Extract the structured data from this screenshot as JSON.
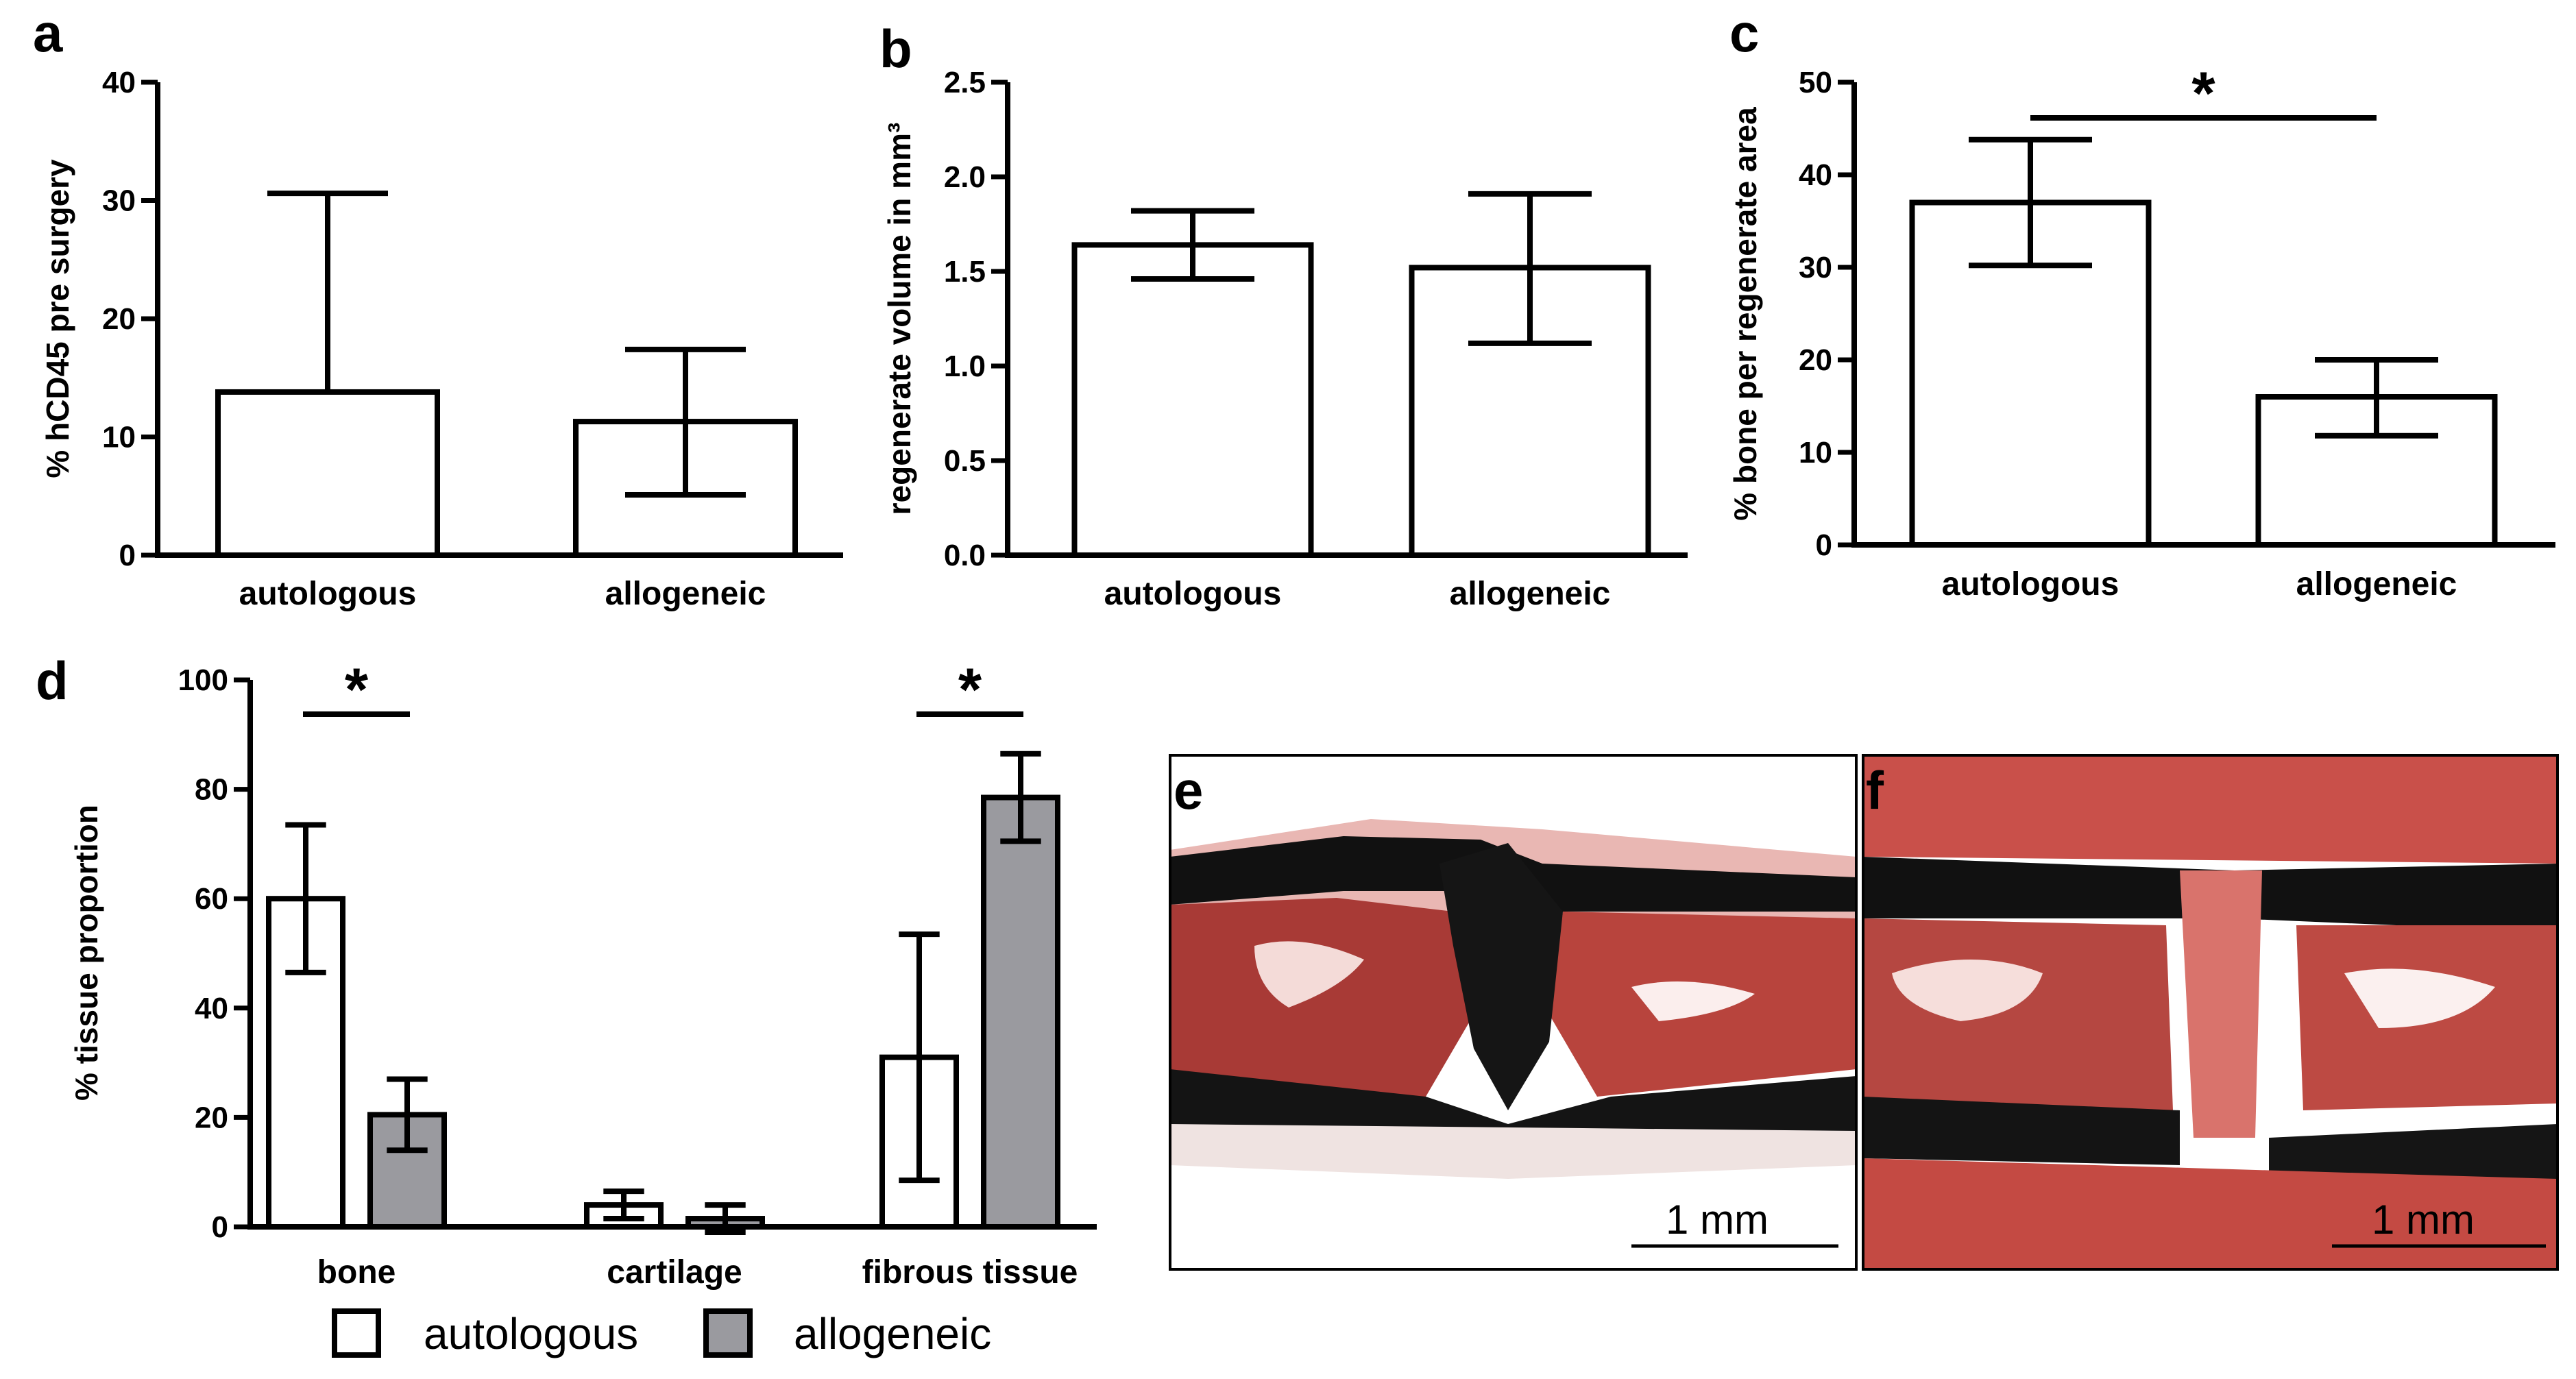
{
  "chart_data": [
    {
      "panel": "a",
      "type": "bar",
      "categories": [
        "autologous",
        "allogeneic"
      ],
      "values": [
        13.8,
        11.3
      ],
      "errors": [
        16.8,
        6.1
      ],
      "error_lower": [
        null,
        6.2
      ],
      "ylabel": "% hCD45 pre surgery",
      "ylim": [
        0,
        40
      ],
      "yticks": [
        "0",
        "10",
        "20",
        "30",
        "40"
      ]
    },
    {
      "panel": "b",
      "type": "bar",
      "categories": [
        "autologous",
        "allogeneic"
      ],
      "values": [
        1.64,
        1.52
      ],
      "errors": [
        0.18,
        0.39
      ],
      "error_lower": [
        0.18,
        0.4
      ],
      "ylabel": "regenerate volume in mm³",
      "ylim": [
        0,
        2.5
      ],
      "yticks": [
        "0.0",
        "0.5",
        "1.0",
        "1.5",
        "2.0",
        "2.5"
      ]
    },
    {
      "panel": "c",
      "type": "bar",
      "categories": [
        "autologous",
        "allogeneic"
      ],
      "values": [
        37.0,
        16.0
      ],
      "errors": [
        6.8,
        4.0
      ],
      "error_lower": [
        6.8,
        4.2
      ],
      "ylabel": "% bone per regenerate area",
      "ylim": [
        0,
        50
      ],
      "yticks": [
        "0",
        "10",
        "20",
        "30",
        "40",
        "50"
      ],
      "significance": [
        {
          "label": "*",
          "between": [
            0,
            1
          ]
        }
      ]
    },
    {
      "panel": "d",
      "type": "bar",
      "categories": [
        "bone",
        "cartilage",
        "fibrous tissue"
      ],
      "series": [
        {
          "name": "autologous",
          "values": [
            60.0,
            4.0,
            31.0
          ],
          "errors": [
            13.5,
            2.5,
            22.5
          ],
          "color": "#ffffff"
        },
        {
          "name": "allogeneic",
          "values": [
            20.5,
            1.5,
            78.5
          ],
          "errors": [
            6.5,
            2.5,
            8.0
          ],
          "color": "#9a9a9f"
        }
      ],
      "ylabel": "% tissue proportion",
      "ylim": [
        0,
        100
      ],
      "yticks": [
        "0",
        "20",
        "40",
        "60",
        "80",
        "100"
      ],
      "significance": [
        {
          "label": "*",
          "category": "bone"
        },
        {
          "label": "*",
          "category": "fibrous tissue"
        }
      ],
      "legend": {
        "position": "bottom",
        "entries": [
          "autologous",
          "allogeneic"
        ]
      }
    }
  ],
  "images": [
    {
      "panel": "e",
      "scale_bar": "1 mm"
    },
    {
      "panel": "f",
      "scale_bar": "1 mm"
    }
  ],
  "colors": {
    "allogeneic_bar": "#9a9a9f",
    "tissue_red": "#c8453c",
    "bone_black": "#111111"
  }
}
